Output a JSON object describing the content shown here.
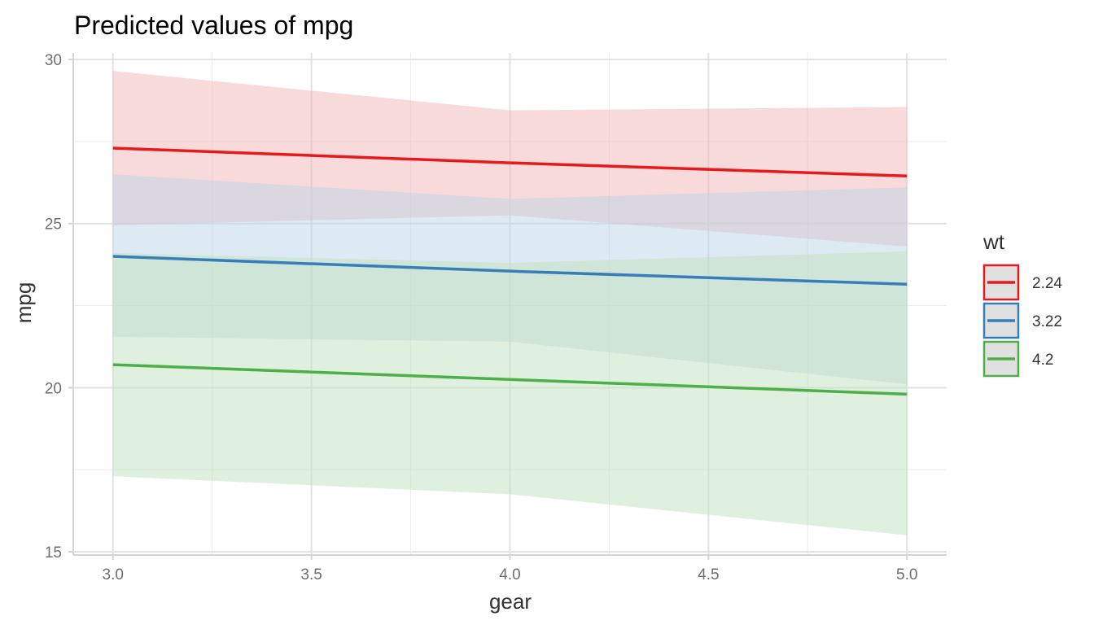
{
  "chart_data": {
    "type": "line",
    "title": "Predicted values of mpg",
    "xlabel": "gear",
    "ylabel": "mpg",
    "xlim": [
      2.9,
      5.1
    ],
    "ylim": [
      14.9,
      30.2
    ],
    "x_ticks": [
      3.0,
      3.5,
      4.0,
      4.5,
      5.0
    ],
    "x_tick_labels": [
      "3.0",
      "3.5",
      "4.0",
      "4.5",
      "5.0"
    ],
    "y_ticks": [
      15,
      20,
      25,
      30
    ],
    "y_tick_labels": [
      "15",
      "20",
      "25",
      "30"
    ],
    "grid": true,
    "legend": {
      "title": "wt",
      "position": "right"
    },
    "x": [
      3,
      4,
      5
    ],
    "series": [
      {
        "name": "2.24",
        "color": "#e41a1c",
        "fill": "#f4b6b6",
        "values": [
          27.3,
          26.85,
          26.45
        ],
        "lower": [
          24.95,
          25.25,
          24.3
        ],
        "upper": [
          29.65,
          28.45,
          28.55
        ]
      },
      {
        "name": "3.22",
        "color": "#377eb8",
        "fill": "#bcd3e8",
        "values": [
          24.0,
          23.55,
          23.15
        ],
        "lower": [
          21.55,
          21.4,
          20.1
        ],
        "upper": [
          26.5,
          25.75,
          26.1
        ]
      },
      {
        "name": "4.2",
        "color": "#4daf4a",
        "fill": "#bfe2bd",
        "values": [
          20.7,
          20.25,
          19.8
        ],
        "lower": [
          17.3,
          16.75,
          15.5
        ],
        "upper": [
          24.1,
          23.8,
          24.15
        ]
      }
    ]
  }
}
